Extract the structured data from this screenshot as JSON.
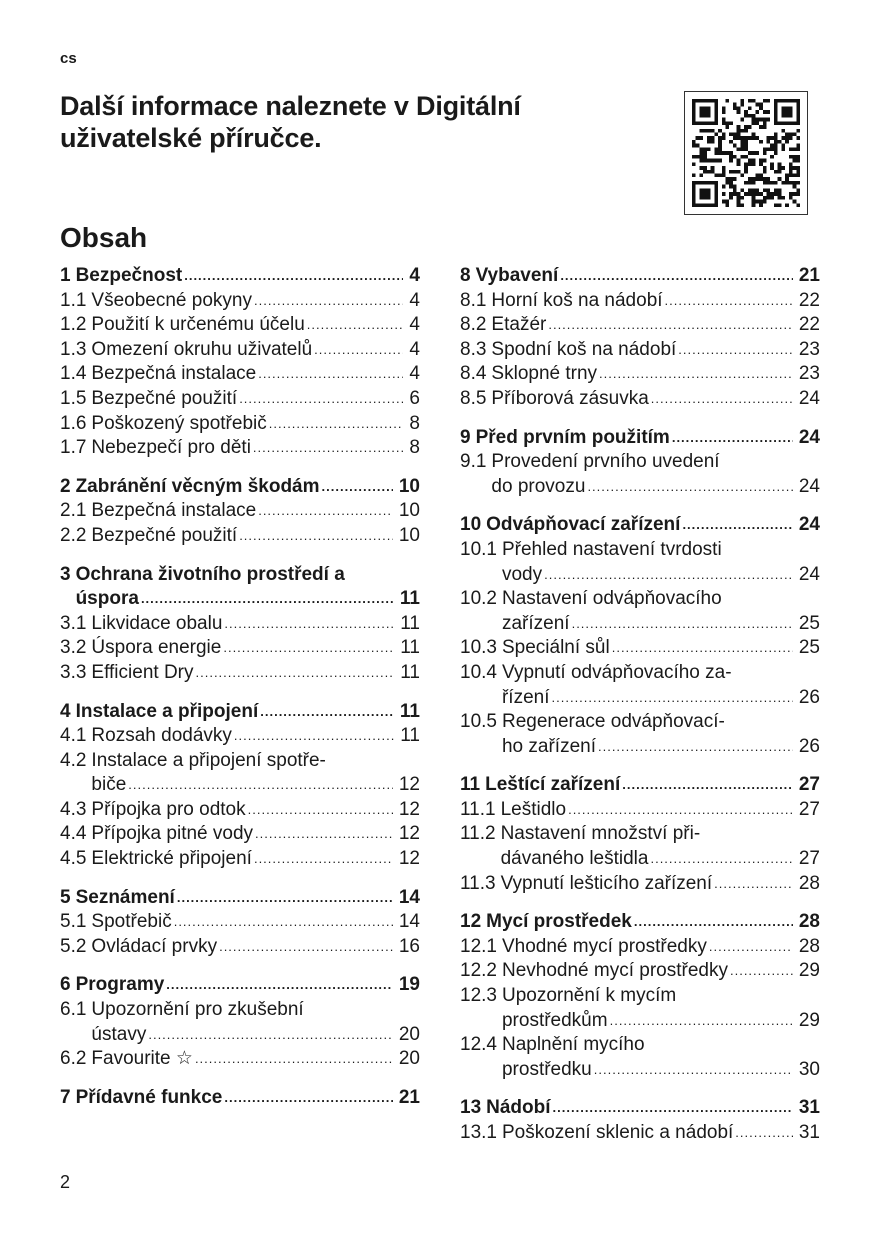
{
  "header": {
    "lang": "cs",
    "headline": "Další informace naleznete v Digitální uživatelské příručce.",
    "qr_code": "qr-code"
  },
  "toc": {
    "title": "Obsah",
    "left": [
      [
        {
          "num": "1",
          "lines": [
            "Bezpečnost"
          ],
          "page": "4",
          "bold": true
        },
        {
          "num": "1.1",
          "lines": [
            "Všeobecné pokyny"
          ],
          "page": "4"
        },
        {
          "num": "1.2",
          "lines": [
            "Použití k určenému účelu"
          ],
          "page": "4"
        },
        {
          "num": "1.3",
          "lines": [
            "Omezení okruhu uživatelů"
          ],
          "page": "4"
        },
        {
          "num": "1.4",
          "lines": [
            "Bezpečná instalace"
          ],
          "page": "4"
        },
        {
          "num": "1.5",
          "lines": [
            "Bezpečné použití"
          ],
          "page": "6"
        },
        {
          "num": "1.6",
          "lines": [
            "Poškozený spotřebič"
          ],
          "page": "8"
        },
        {
          "num": "1.7",
          "lines": [
            "Nebezpečí pro děti"
          ],
          "page": "8"
        }
      ],
      [
        {
          "num": "2",
          "lines": [
            "Zabránění věcným škodám"
          ],
          "page": "10",
          "bold": true
        },
        {
          "num": "2.1",
          "lines": [
            "Bezpečná instalace"
          ],
          "page": "10"
        },
        {
          "num": "2.2",
          "lines": [
            "Bezpečné použití"
          ],
          "page": "10"
        }
      ],
      [
        {
          "num": "3",
          "lines": [
            "Ochrana životního prostředí a",
            "úspora"
          ],
          "page": "11",
          "bold": true
        },
        {
          "num": "3.1",
          "lines": [
            "Likvidace obalu"
          ],
          "page": "11"
        },
        {
          "num": "3.2",
          "lines": [
            "Úspora energie"
          ],
          "page": "11"
        },
        {
          "num": "3.3",
          "lines": [
            "Efficient Dry"
          ],
          "page": "11"
        }
      ],
      [
        {
          "num": "4",
          "lines": [
            "Instalace a připojení"
          ],
          "page": "11",
          "bold": true
        },
        {
          "num": "4.1",
          "lines": [
            "Rozsah dodávky"
          ],
          "page": "11"
        },
        {
          "num": "4.2",
          "lines": [
            "Instalace a připojení spotře-",
            "biče"
          ],
          "page": "12"
        },
        {
          "num": "4.3",
          "lines": [
            "Přípojka pro odtok"
          ],
          "page": "12"
        },
        {
          "num": "4.4",
          "lines": [
            "Přípojka pitné vody"
          ],
          "page": "12"
        },
        {
          "num": "4.5",
          "lines": [
            "Elektrické připojení"
          ],
          "page": "12"
        }
      ],
      [
        {
          "num": "5",
          "lines": [
            "Seznámení"
          ],
          "page": "14",
          "bold": true
        },
        {
          "num": "5.1",
          "lines": [
            "Spotřebič"
          ],
          "page": "14"
        },
        {
          "num": "5.2",
          "lines": [
            "Ovládací prvky"
          ],
          "page": "16"
        }
      ],
      [
        {
          "num": "6",
          "lines": [
            "Programy"
          ],
          "page": "19",
          "bold": true
        },
        {
          "num": "6.1",
          "lines": [
            "Upozornění pro zkušební",
            "ústavy"
          ],
          "page": "20"
        },
        {
          "num": "6.2",
          "lines": [
            "Favourite ☆"
          ],
          "page": "20"
        }
      ],
      [
        {
          "num": "7",
          "lines": [
            "Přídavné funkce"
          ],
          "page": "21",
          "bold": true
        }
      ]
    ],
    "right": [
      [
        {
          "num": "8",
          "lines": [
            "Vybavení"
          ],
          "page": "21",
          "bold": true
        },
        {
          "num": "8.1",
          "lines": [
            "Horní koš na nádobí"
          ],
          "page": "22"
        },
        {
          "num": "8.2",
          "lines": [
            "Etažér"
          ],
          "page": "22"
        },
        {
          "num": "8.3",
          "lines": [
            "Spodní koš na nádobí"
          ],
          "page": "23"
        },
        {
          "num": "8.4",
          "lines": [
            "Sklopné trny"
          ],
          "page": "23"
        },
        {
          "num": "8.5",
          "lines": [
            "Příborová zásuvka"
          ],
          "page": "24"
        }
      ],
      [
        {
          "num": "9",
          "lines": [
            "Před prvním použitím"
          ],
          "page": "24",
          "bold": true
        },
        {
          "num": "9.1",
          "lines": [
            "Provedení prvního uvedení",
            "do provozu"
          ],
          "page": "24"
        }
      ],
      [
        {
          "num": "10",
          "lines": [
            "Odvápňovací zařízení"
          ],
          "page": "24",
          "bold": true
        },
        {
          "num": "10.1",
          "lines": [
            "Přehled nastavení tvrdosti",
            "vody"
          ],
          "page": "24"
        },
        {
          "num": "10.2",
          "lines": [
            "Nastavení odvápňovacího",
            "zařízení"
          ],
          "page": "25"
        },
        {
          "num": "10.3",
          "lines": [
            "Speciální sůl"
          ],
          "page": "25"
        },
        {
          "num": "10.4",
          "lines": [
            "Vypnutí odvápňovacího za-",
            "řízení"
          ],
          "page": "26"
        },
        {
          "num": "10.5",
          "lines": [
            "Regenerace odvápňovací-",
            "ho zařízení"
          ],
          "page": "26"
        }
      ],
      [
        {
          "num": "11",
          "lines": [
            "Leštící zařízení"
          ],
          "page": "27",
          "bold": true
        },
        {
          "num": "11.1",
          "lines": [
            "Leštidlo"
          ],
          "page": "27"
        },
        {
          "num": "11.2",
          "lines": [
            "Nastavení množství při-",
            "dávaného leštidla"
          ],
          "page": "27"
        },
        {
          "num": "11.3",
          "lines": [
            "Vypnutí lešticího zařízení"
          ],
          "page": "28"
        }
      ],
      [
        {
          "num": "12",
          "lines": [
            "Mycí prostředek"
          ],
          "page": "28",
          "bold": true
        },
        {
          "num": "12.1",
          "lines": [
            "Vhodné mycí prostředky"
          ],
          "page": "28"
        },
        {
          "num": "12.2",
          "lines": [
            "Nevhodné mycí prostředky"
          ],
          "page": "29"
        },
        {
          "num": "12.3",
          "lines": [
            "Upozornění k mycím",
            "prostředkům"
          ],
          "page": "29"
        },
        {
          "num": "12.4",
          "lines": [
            "Naplnění mycího",
            "prostředku"
          ],
          "page": "30"
        }
      ],
      [
        {
          "num": "13",
          "lines": [
            "Nádobí"
          ],
          "page": "31",
          "bold": true
        },
        {
          "num": "13.1",
          "lines": [
            "Poškození sklenic a nádobí"
          ],
          "page": "31"
        }
      ]
    ]
  },
  "footer": {
    "page_number": "2"
  }
}
